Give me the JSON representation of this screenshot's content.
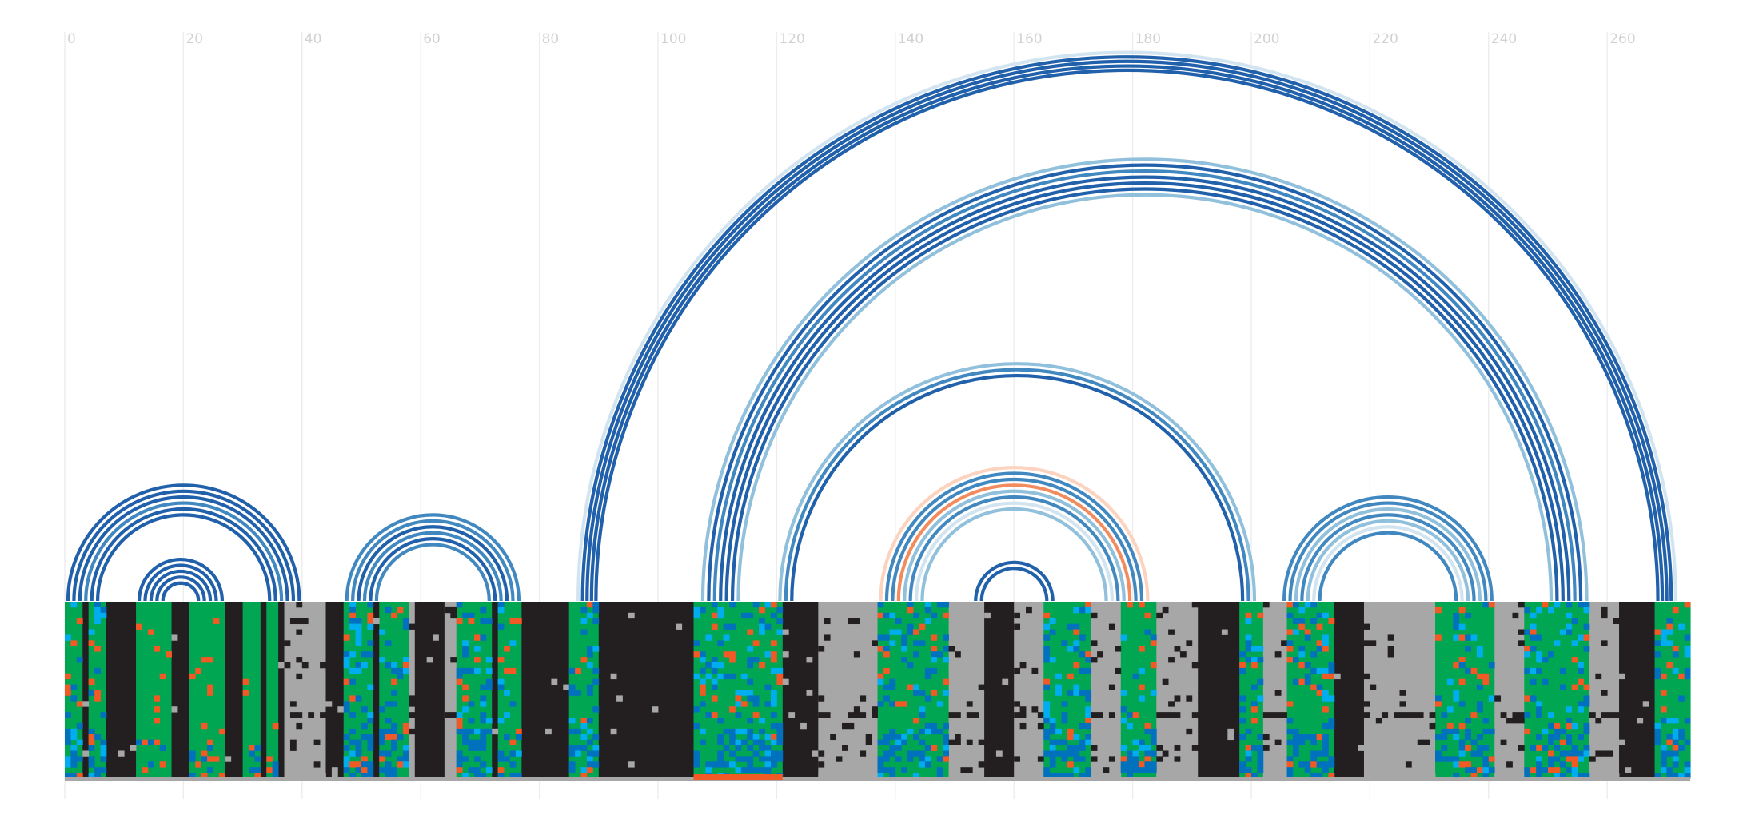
{
  "chart_data": {
    "type": "arc-diagram",
    "title": "",
    "x_axis": {
      "min": 0,
      "max": 272,
      "tick_step": 20,
      "tick_labels": [
        "0",
        "20",
        "40",
        "60",
        "80",
        "100",
        "120",
        "140",
        "160",
        "180",
        "200",
        "220",
        "240",
        "260"
      ],
      "grid": true
    },
    "colors": {
      "match": "#00a651",
      "gap": "#231f20",
      "blue": "#0071bc",
      "cyan": "#00aeef",
      "orange": "#f15a24",
      "gray": "#a7a7a7",
      "arc_blue_dark": "#2160aa",
      "arc_blue": "#4188c0",
      "arc_blue_light": "#90c0dc",
      "arc_blue_faint": "#d3e4f1",
      "arc_orange": "#f28c5f",
      "arc_orange_light": "#fbd3bf"
    },
    "helices": [
      {
        "outer": [
          0,
          39
        ],
        "inner_start": [
          0,
          5
        ],
        "inner_end": [
          34,
          39
        ],
        "colors": [
          "arc_blue_dark",
          "arc_blue_dark",
          "arc_blue_dark",
          "arc_blue",
          "arc_blue_dark",
          "arc_blue_dark"
        ]
      },
      {
        "outer": [
          12,
          26
        ],
        "inner_start": [
          12,
          16
        ],
        "inner_end": [
          22,
          26
        ],
        "colors": [
          "arc_blue_dark",
          "arc_blue_dark",
          "arc_blue_dark",
          "arc_blue_dark",
          "arc_blue_dark"
        ]
      },
      {
        "outer": [
          47,
          76
        ],
        "inner_start": [
          47,
          52
        ],
        "inner_end": [
          71,
          76
        ],
        "colors": [
          "arc_blue",
          "arc_blue",
          "arc_blue_dark",
          "arc_blue",
          "arc_blue_dark",
          "arc_blue"
        ]
      },
      {
        "outer": [
          86,
          272
        ],
        "inner_start": [
          86,
          89
        ],
        "inner_end": [
          268,
          271
        ],
        "colors": [
          "arc_blue_faint",
          "arc_blue_dark",
          "arc_blue_dark",
          "arc_blue_dark",
          "arc_blue_dark"
        ]
      },
      {
        "outer": [
          107,
          257
        ],
        "inner_start": [
          107,
          113
        ],
        "inner_end": [
          250,
          256
        ],
        "colors": [
          "arc_blue_light",
          "arc_blue_dark",
          "arc_blue",
          "arc_blue_dark",
          "arc_blue_dark",
          "arc_blue_dark",
          "arc_blue_light"
        ]
      },
      {
        "outer": [
          120,
          201
        ],
        "inner_start": [
          120,
          122
        ],
        "inner_end": [
          198,
          200
        ],
        "colors": [
          "arc_blue_light",
          "arc_blue",
          "arc_blue_dark"
        ]
      },
      {
        "outer": [
          137,
          183
        ],
        "inner_start": [
          137,
          144
        ],
        "inner_end": [
          175,
          182
        ],
        "colors": [
          "arc_orange_light",
          "arc_blue",
          "arc_blue",
          "arc_orange",
          "arc_blue_light",
          "arc_blue",
          "arc_blue_faint",
          "arc_blue_light"
        ]
      },
      {
        "outer": [
          153,
          167
        ],
        "inner_start": [
          153,
          154
        ],
        "inner_end": [
          165,
          166
        ],
        "colors": [
          "arc_blue_dark",
          "arc_blue_dark"
        ]
      },
      {
        "outer": [
          205,
          240
        ],
        "inner_start": [
          205,
          211
        ],
        "inner_end": [
          234,
          240
        ],
        "colors": [
          "arc_blue",
          "arc_blue",
          "arc_blue_light",
          "arc_blue",
          "arc_blue_light",
          "arc_blue_faint",
          "arc_blue"
        ]
      }
    ],
    "alignment": {
      "rows": 32,
      "columns": 274,
      "blocks": [
        {
          "range": [
            0,
            2
          ],
          "state": "match"
        },
        {
          "range": [
            3,
            3
          ],
          "state": "gap"
        },
        {
          "range": [
            4,
            6
          ],
          "state": "match"
        },
        {
          "range": [
            7,
            11
          ],
          "state": "gap"
        },
        {
          "range": [
            12,
            17
          ],
          "state": "match"
        },
        {
          "range": [
            18,
            20
          ],
          "state": "gap"
        },
        {
          "range": [
            21,
            26
          ],
          "state": "match"
        },
        {
          "range": [
            27,
            29
          ],
          "state": "gap"
        },
        {
          "range": [
            30,
            32
          ],
          "state": "match"
        },
        {
          "range": [
            33,
            33
          ],
          "state": "gap"
        },
        {
          "range": [
            34,
            35
          ],
          "state": "match"
        },
        {
          "range": [
            36,
            36
          ],
          "state": "gap"
        },
        {
          "range": [
            37,
            39
          ],
          "state": "gray"
        },
        {
          "range": [
            40,
            43
          ],
          "state": "gray"
        },
        {
          "range": [
            44,
            46
          ],
          "state": "gap"
        },
        {
          "range": [
            47,
            51
          ],
          "state": "match"
        },
        {
          "range": [
            52,
            52
          ],
          "state": "gap"
        },
        {
          "range": [
            53,
            57
          ],
          "state": "match"
        },
        {
          "range": [
            58,
            58
          ],
          "state": "gray"
        },
        {
          "range": [
            59,
            63
          ],
          "state": "gap"
        },
        {
          "range": [
            64,
            65
          ],
          "state": "gray"
        },
        {
          "range": [
            66,
            71
          ],
          "state": "match"
        },
        {
          "range": [
            72,
            72
          ],
          "state": "gap"
        },
        {
          "range": [
            73,
            76
          ],
          "state": "match"
        },
        {
          "range": [
            77,
            84
          ],
          "state": "gap"
        },
        {
          "range": [
            85,
            89
          ],
          "state": "match"
        },
        {
          "range": [
            90,
            105
          ],
          "state": "gap"
        },
        {
          "range": [
            106,
            120
          ],
          "state": "match"
        },
        {
          "range": [
            121,
            126
          ],
          "state": "gap"
        },
        {
          "range": [
            127,
            136
          ],
          "state": "gray"
        },
        {
          "range": [
            137,
            148
          ],
          "state": "match"
        },
        {
          "range": [
            149,
            154
          ],
          "state": "gray"
        },
        {
          "range": [
            155,
            159
          ],
          "state": "gap"
        },
        {
          "range": [
            160,
            164
          ],
          "state": "gray"
        },
        {
          "range": [
            165,
            172
          ],
          "state": "match"
        },
        {
          "range": [
            173,
            177
          ],
          "state": "gray"
        },
        {
          "range": [
            178,
            183
          ],
          "state": "match"
        },
        {
          "range": [
            184,
            190
          ],
          "state": "gray"
        },
        {
          "range": [
            191,
            197
          ],
          "state": "gap"
        },
        {
          "range": [
            198,
            201
          ],
          "state": "match"
        },
        {
          "range": [
            202,
            205
          ],
          "state": "gray"
        },
        {
          "range": [
            206,
            213
          ],
          "state": "match"
        },
        {
          "range": [
            214,
            218
          ],
          "state": "gap"
        },
        {
          "range": [
            219,
            230
          ],
          "state": "gray"
        },
        {
          "range": [
            231,
            240
          ],
          "state": "match"
        },
        {
          "range": [
            241,
            245
          ],
          "state": "gray"
        },
        {
          "range": [
            246,
            256
          ],
          "state": "match"
        },
        {
          "range": [
            257,
            261
          ],
          "state": "gray"
        },
        {
          "range": [
            262,
            267
          ],
          "state": "gap"
        },
        {
          "range": [
            268,
            273
          ],
          "state": "match"
        }
      ],
      "mixed_columns": [
        [
          0,
          7
        ],
        [
          47,
          76
        ],
        [
          85,
          89
        ],
        [
          106,
          120
        ],
        [
          137,
          148
        ],
        [
          165,
          183
        ],
        [
          198,
          213
        ],
        [
          231,
          256
        ],
        [
          268,
          273
        ]
      ],
      "gap_row": 20
    }
  }
}
